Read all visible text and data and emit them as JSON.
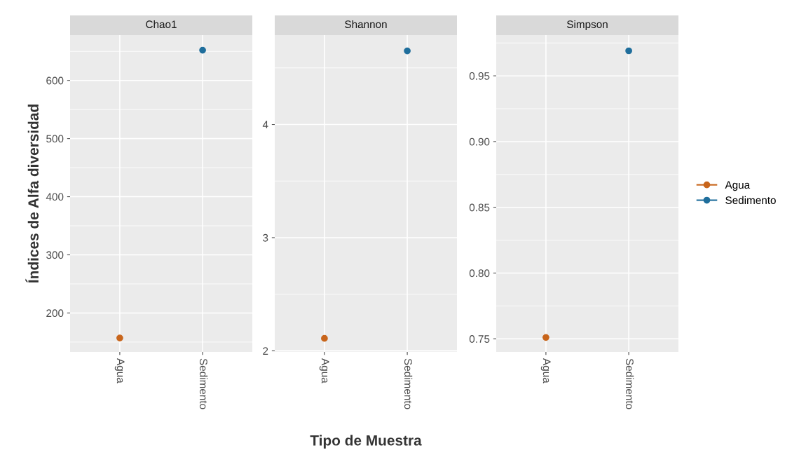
{
  "chart_data": [
    {
      "type": "line",
      "title": "Chao1",
      "ylabel": "Índices de Alfa diversidad",
      "categories": [
        "Agua",
        "Sedimento"
      ],
      "marker": "circle",
      "grid": true,
      "ylim": [
        133,
        678
      ],
      "yticks": [
        200,
        300,
        400,
        500,
        600
      ],
      "series": [
        {
          "color": "#c8651b",
          "values": [
            157,
            null
          ]
        },
        {
          "color": "#1f6e9c",
          "values": [
            null,
            652
          ]
        }
      ]
    },
    {
      "type": "line",
      "title": "Shannon",
      "xlabel": "Tipo de Muestra",
      "categories": [
        "Agua",
        "Sedimento"
      ],
      "marker": "circle",
      "grid": true,
      "ylim": [
        1.99,
        4.79
      ],
      "yticks": [
        2,
        3,
        4
      ],
      "series": [
        {
          "color": "#c8651b",
          "values": [
            2.11,
            null
          ]
        },
        {
          "color": "#1f6e9c",
          "values": [
            null,
            4.65
          ]
        }
      ]
    },
    {
      "type": "line",
      "title": "Simpson",
      "categories": [
        "Agua",
        "Sedimento"
      ],
      "marker": "circle",
      "grid": true,
      "legend": "right",
      "ylim": [
        0.74,
        0.981
      ],
      "yticks": [
        {
          "value": 0.75,
          "label": "0.75"
        },
        {
          "value": 0.8,
          "label": "0.80"
        },
        {
          "value": 0.85,
          "label": "0.85"
        },
        {
          "value": 0.9,
          "label": "0.90"
        },
        {
          "value": 0.95,
          "label": "0.95"
        }
      ],
      "series": [
        {
          "name": "Agua",
          "color": "#c8651b",
          "values": [
            0.751,
            null
          ]
        },
        {
          "name": "Sedimento",
          "color": "#1f6e9c",
          "values": [
            null,
            0.969
          ]
        }
      ]
    }
  ]
}
